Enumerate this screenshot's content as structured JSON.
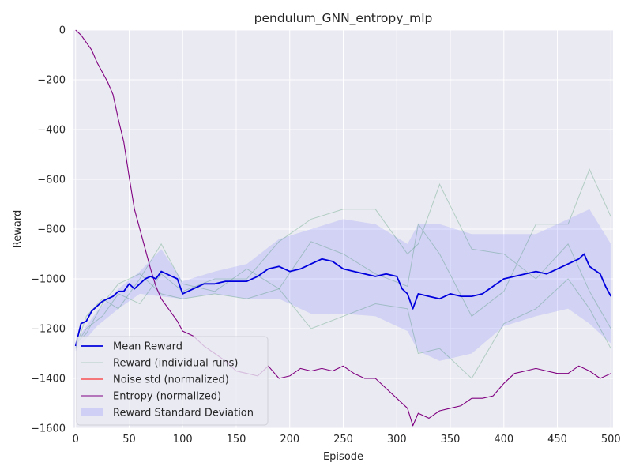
{
  "chart_data": {
    "type": "line",
    "title": "pendulum_GNN_entropy_mlp",
    "xlabel": "Episode",
    "ylabel": "Reward",
    "xlim": [
      -2,
      502
    ],
    "ylim": [
      -1600,
      0
    ],
    "xticks": [
      0,
      50,
      100,
      150,
      200,
      250,
      300,
      350,
      400,
      450,
      500
    ],
    "yticks": [
      0,
      -200,
      -400,
      -600,
      -800,
      -1000,
      -1200,
      -1400,
      -1600
    ],
    "grid": true,
    "legend_position": "lower-left",
    "legend": [
      {
        "label": "Mean Reward",
        "kind": "line",
        "color": "#0000dd",
        "width": 1.8
      },
      {
        "label": "Reward (individual runs)",
        "kind": "line",
        "color": "#2e8b57",
        "width": 1,
        "opacity": 0.3
      },
      {
        "label": "Noise std (normalized)",
        "kind": "line",
        "color": "#ff0000",
        "width": 1
      },
      {
        "label": "Entropy (normalized)",
        "kind": "line",
        "color": "#800080",
        "width": 1
      },
      {
        "label": "Reward Standard Deviation",
        "kind": "patch",
        "color": "#8080ff",
        "opacity": 0.25
      }
    ],
    "series": [
      {
        "name": "Mean Reward",
        "color": "#0000dd",
        "x": [
          0,
          5,
          10,
          15,
          20,
          25,
          30,
          35,
          40,
          45,
          50,
          55,
          60,
          65,
          70,
          75,
          80,
          85,
          90,
          95,
          100,
          110,
          120,
          130,
          140,
          150,
          160,
          170,
          180,
          190,
          200,
          210,
          220,
          230,
          240,
          250,
          260,
          270,
          280,
          290,
          300,
          305,
          310,
          315,
          320,
          330,
          340,
          350,
          360,
          370,
          380,
          390,
          400,
          410,
          420,
          430,
          440,
          450,
          460,
          470,
          475,
          480,
          490,
          495,
          500
        ],
        "y": [
          -1270,
          -1180,
          -1170,
          -1130,
          -1110,
          -1090,
          -1080,
          -1070,
          -1050,
          -1050,
          -1020,
          -1040,
          -1020,
          -1000,
          -990,
          -1000,
          -970,
          -980,
          -990,
          -1000,
          -1060,
          -1040,
          -1020,
          -1020,
          -1010,
          -1010,
          -1010,
          -990,
          -960,
          -950,
          -970,
          -960,
          -940,
          -920,
          -930,
          -960,
          -970,
          -980,
          -990,
          -980,
          -990,
          -1040,
          -1060,
          -1120,
          -1060,
          -1070,
          -1080,
          -1060,
          -1070,
          -1070,
          -1060,
          -1030,
          -1000,
          -990,
          -980,
          -970,
          -980,
          -960,
          -940,
          -920,
          -900,
          -950,
          -980,
          -1030,
          -1070
        ]
      },
      {
        "name": "Entropy (normalized)",
        "color": "#800080",
        "x": [
          0,
          5,
          10,
          15,
          20,
          25,
          30,
          35,
          40,
          45,
          50,
          55,
          60,
          65,
          70,
          75,
          80,
          85,
          90,
          95,
          100,
          110,
          120,
          130,
          140,
          150,
          160,
          170,
          180,
          190,
          200,
          210,
          220,
          230,
          240,
          250,
          260,
          270,
          280,
          290,
          300,
          310,
          315,
          320,
          330,
          340,
          350,
          360,
          370,
          380,
          390,
          400,
          410,
          420,
          430,
          440,
          450,
          460,
          470,
          480,
          490,
          500
        ],
        "y": [
          0,
          -20,
          -50,
          -80,
          -130,
          -170,
          -210,
          -260,
          -360,
          -450,
          -590,
          -720,
          -800,
          -880,
          -960,
          -1030,
          -1080,
          -1110,
          -1140,
          -1170,
          -1210,
          -1230,
          -1270,
          -1300,
          -1330,
          -1370,
          -1380,
          -1390,
          -1350,
          -1400,
          -1390,
          -1360,
          -1370,
          -1360,
          -1370,
          -1350,
          -1380,
          -1400,
          -1400,
          -1440,
          -1480,
          -1520,
          -1590,
          -1540,
          -1560,
          -1530,
          -1520,
          -1510,
          -1480,
          -1480,
          -1470,
          -1420,
          -1380,
          -1370,
          -1360,
          -1370,
          -1380,
          -1380,
          -1350,
          -1370,
          -1400,
          -1380
        ]
      },
      {
        "name": "Noise std (normalized)",
        "color": "#ff0000",
        "x": [],
        "y": []
      }
    ],
    "individual_runs": [
      {
        "x": [
          0,
          10,
          25,
          40,
          60,
          80,
          100,
          130,
          160,
          190,
          220,
          250,
          280,
          310,
          320,
          340,
          370,
          400,
          430,
          460,
          480,
          500
        ],
        "y": [
          -1280,
          -1150,
          -1080,
          -1120,
          -1000,
          -860,
          -1020,
          -1050,
          -960,
          -1040,
          -850,
          -900,
          -980,
          -1030,
          -780,
          -900,
          -1150,
          -1050,
          -780,
          -780,
          -560,
          -750
        ]
      },
      {
        "x": [
          0,
          10,
          25,
          40,
          60,
          80,
          100,
          130,
          160,
          190,
          220,
          250,
          280,
          310,
          320,
          340,
          370,
          400,
          430,
          460,
          480,
          500
        ],
        "y": [
          -1270,
          -1200,
          -1150,
          -1060,
          -1100,
          -980,
          -1050,
          -1000,
          -1000,
          -850,
          -760,
          -720,
          -720,
          -900,
          -860,
          -620,
          -880,
          -900,
          -1000,
          -860,
          -1050,
          -1200
        ]
      },
      {
        "x": [
          0,
          10,
          25,
          40,
          60,
          80,
          100,
          130,
          160,
          190,
          220,
          250,
          280,
          310,
          320,
          340,
          370,
          400,
          430,
          460,
          480,
          500
        ],
        "y": [
          -1260,
          -1220,
          -1100,
          -1020,
          -980,
          -1060,
          -1080,
          -1060,
          -1080,
          -1040,
          -1200,
          -1150,
          -1100,
          -1120,
          -1300,
          -1280,
          -1400,
          -1180,
          -1120,
          -1000,
          -1120,
          -1280
        ]
      }
    ],
    "std_band": {
      "color": "#8080ff",
      "x": [
        0,
        20,
        40,
        60,
        80,
        100,
        130,
        160,
        190,
        220,
        250,
        280,
        310,
        320,
        340,
        370,
        400,
        430,
        460,
        480,
        500
      ],
      "upper": [
        -1250,
        -1130,
        -1040,
        -970,
        -880,
        -1010,
        -970,
        -940,
        -840,
        -800,
        -760,
        -780,
        -860,
        -780,
        -780,
        -820,
        -820,
        -820,
        -760,
        -720,
        -860
      ],
      "lower": [
        -1290,
        -1190,
        -1120,
        -1060,
        -1070,
        -1080,
        -1060,
        -1080,
        -1080,
        -1140,
        -1140,
        -1150,
        -1210,
        -1290,
        -1330,
        -1300,
        -1190,
        -1150,
        -1120,
        -1180,
        -1260
      ]
    }
  }
}
